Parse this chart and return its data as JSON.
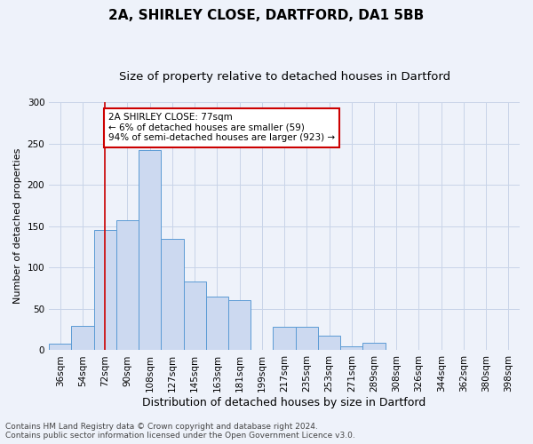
{
  "title1": "2A, SHIRLEY CLOSE, DARTFORD, DA1 5BB",
  "title2": "Size of property relative to detached houses in Dartford",
  "xlabel": "Distribution of detached houses by size in Dartford",
  "ylabel": "Number of detached properties",
  "categories": [
    "36sqm",
    "54sqm",
    "72sqm",
    "90sqm",
    "108sqm",
    "127sqm",
    "145sqm",
    "163sqm",
    "181sqm",
    "199sqm",
    "217sqm",
    "235sqm",
    "253sqm",
    "271sqm",
    "289sqm",
    "308sqm",
    "326sqm",
    "344sqm",
    "362sqm",
    "380sqm",
    "398sqm"
  ],
  "values": [
    8,
    30,
    145,
    157,
    242,
    135,
    83,
    65,
    61,
    1,
    28,
    28,
    18,
    5,
    9,
    1,
    1,
    0,
    1,
    0,
    1
  ],
  "bar_color": "#ccd9f0",
  "bar_edge_color": "#5b9bd5",
  "grid_color": "#c8d4e8",
  "bg_color": "#eef2fa",
  "vline_x": 2,
  "vline_color": "#cc0000",
  "annotation_text": "2A SHIRLEY CLOSE: 77sqm\n← 6% of detached houses are smaller (59)\n94% of semi-detached houses are larger (923) →",
  "annotation_box_color": "#ffffff",
  "annotation_box_edge": "#cc0000",
  "ylim": [
    0,
    300
  ],
  "yticks": [
    0,
    50,
    100,
    150,
    200,
    250,
    300
  ],
  "footer1": "Contains HM Land Registry data © Crown copyright and database right 2024.",
  "footer2": "Contains public sector information licensed under the Open Government Licence v3.0.",
  "title1_fontsize": 11,
  "title2_fontsize": 9.5,
  "xlabel_fontsize": 9,
  "ylabel_fontsize": 8,
  "tick_fontsize": 7.5,
  "annot_fontsize": 7.5,
  "footer_fontsize": 6.5
}
